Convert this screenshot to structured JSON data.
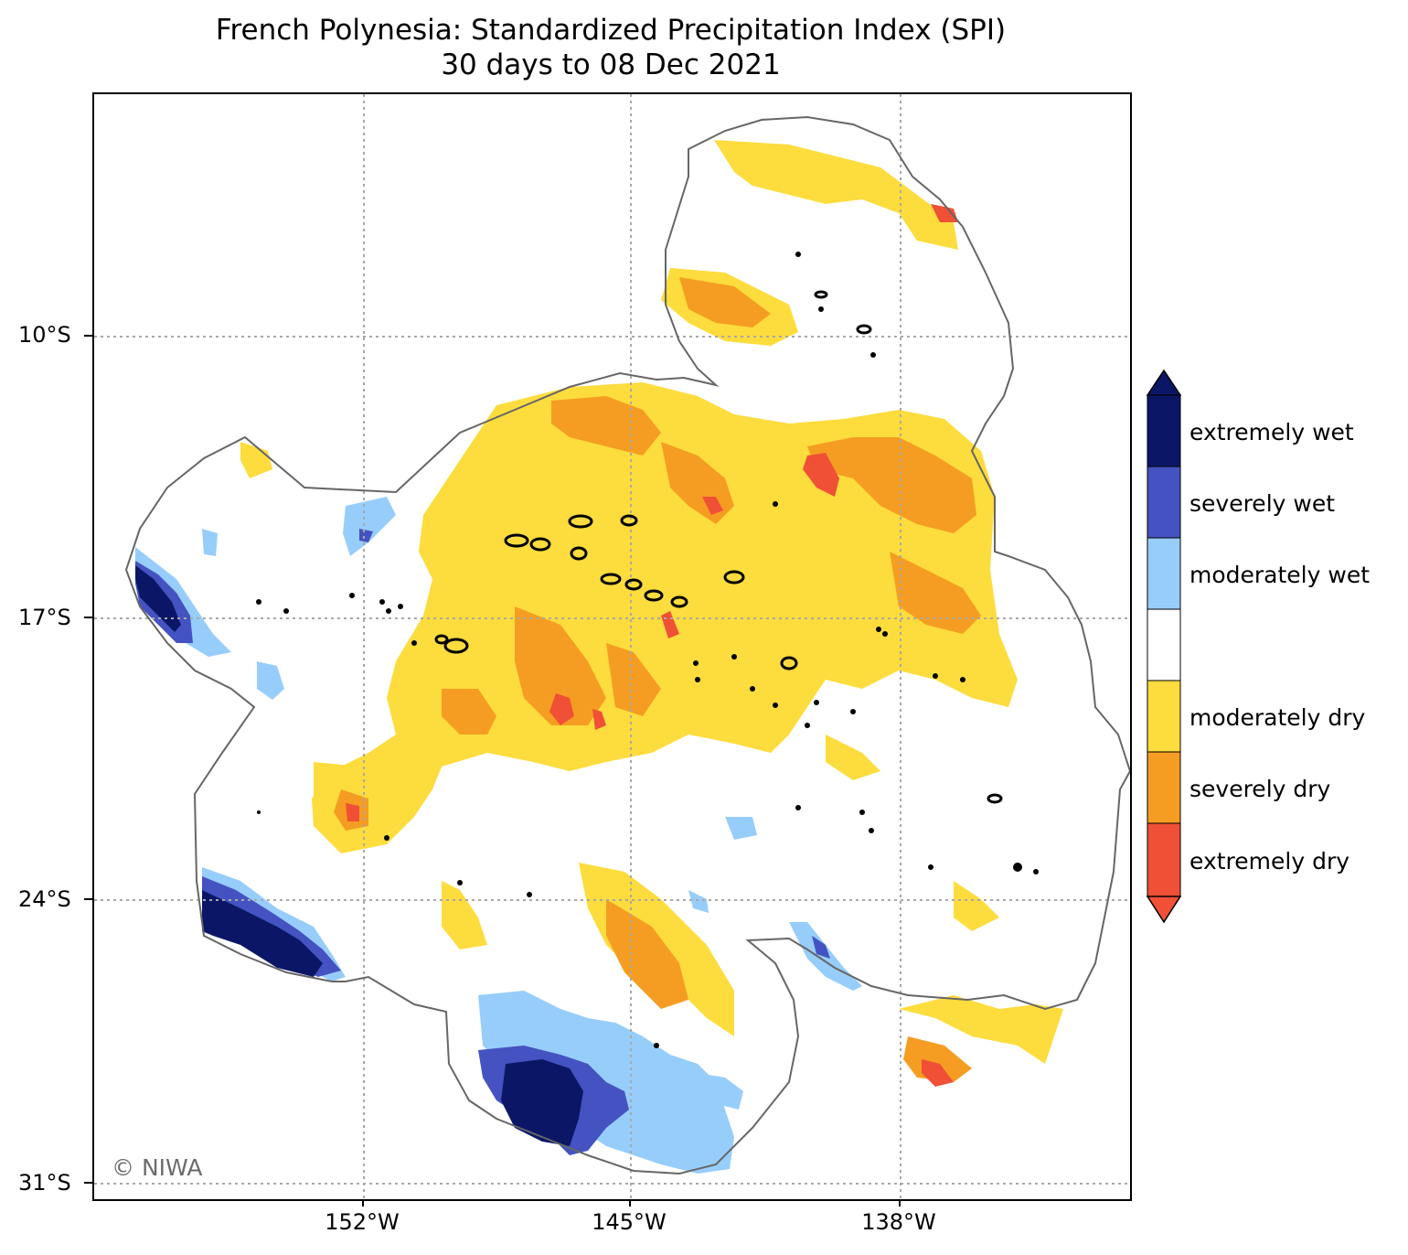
{
  "title": {
    "line1": "French Polynesia: Standardized Precipitation Index (SPI)",
    "line2": "30 days to 08 Dec 2021"
  },
  "axes": {
    "latitudes": [
      "10°S",
      "17°S",
      "24°S",
      "31°S"
    ],
    "longitudes": [
      "152°W",
      "145°W",
      "138°W"
    ]
  },
  "credit": "© NIWA",
  "legend": {
    "categories": [
      {
        "label": "extremely wet",
        "color": "#0b1766"
      },
      {
        "label": "severely wet",
        "color": "#4453c1"
      },
      {
        "label": "moderately wet",
        "color": "#97cdfb"
      },
      {
        "label": "",
        "color": "#ffffff"
      },
      {
        "label": "moderately dry",
        "color": "#fddc3d"
      },
      {
        "label": "severely dry",
        "color": "#f59d22"
      },
      {
        "label": "extremely dry",
        "color": "#ef5036"
      }
    ]
  },
  "colors": {
    "boundary": "#666666",
    "gridline": "#a8a8a8",
    "island": "#000000"
  }
}
